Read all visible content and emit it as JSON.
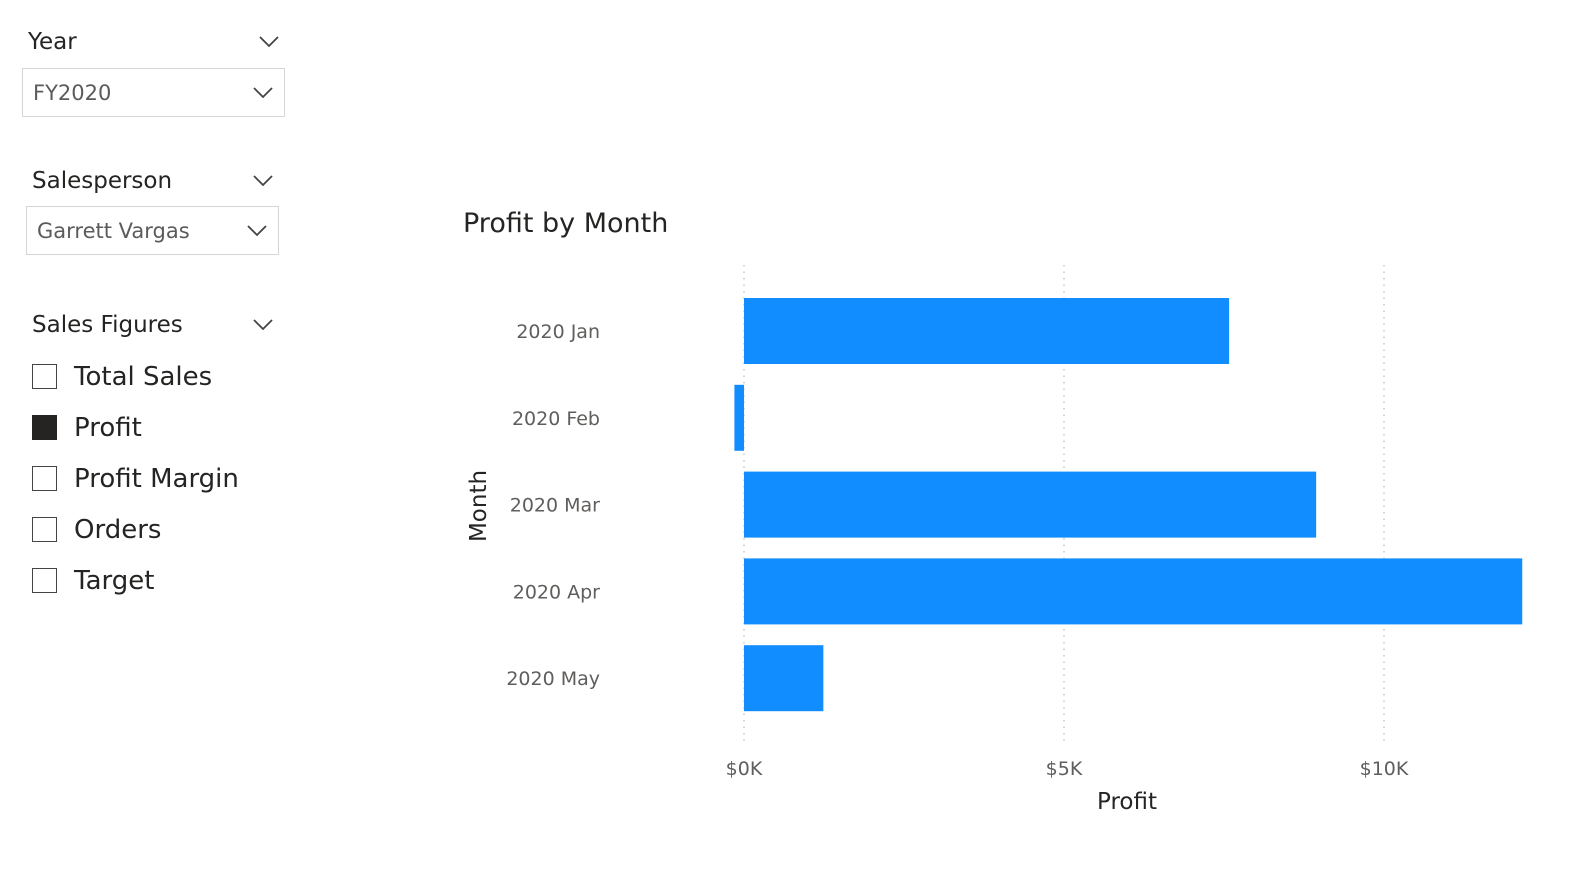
{
  "year_slicer": {
    "title": "Year",
    "selected": "FY2020"
  },
  "salesperson_slicer": {
    "title": "Salesperson",
    "selected": "Garrett Vargas"
  },
  "sales_figures_slicer": {
    "title": "Sales Figures",
    "options": [
      {
        "label": "Total Sales",
        "checked": false
      },
      {
        "label": "Profit",
        "checked": true
      },
      {
        "label": "Profit Margin",
        "checked": false
      },
      {
        "label": "Orders",
        "checked": false
      },
      {
        "label": "Target",
        "checked": false
      }
    ]
  },
  "chart_data": {
    "type": "bar",
    "orientation": "horizontal",
    "title": "Profit by Month",
    "xlabel": "Profit",
    "ylabel": "Month",
    "categories": [
      "2020 Jan",
      "2020 Feb",
      "2020 Mar",
      "2020 Apr",
      "2020 May"
    ],
    "values": [
      7580,
      -150,
      8940,
      12160,
      1240
    ],
    "xlim": [
      -500,
      12300
    ],
    "x_ticks": [
      0,
      5000,
      10000
    ],
    "x_tick_labels": [
      "$0K",
      "$5K",
      "$10K"
    ],
    "grid": true,
    "bar_color": "#118DFF"
  },
  "colors": {
    "accent": "#118DFF",
    "text": "#252423",
    "muted": "#605e5c"
  }
}
